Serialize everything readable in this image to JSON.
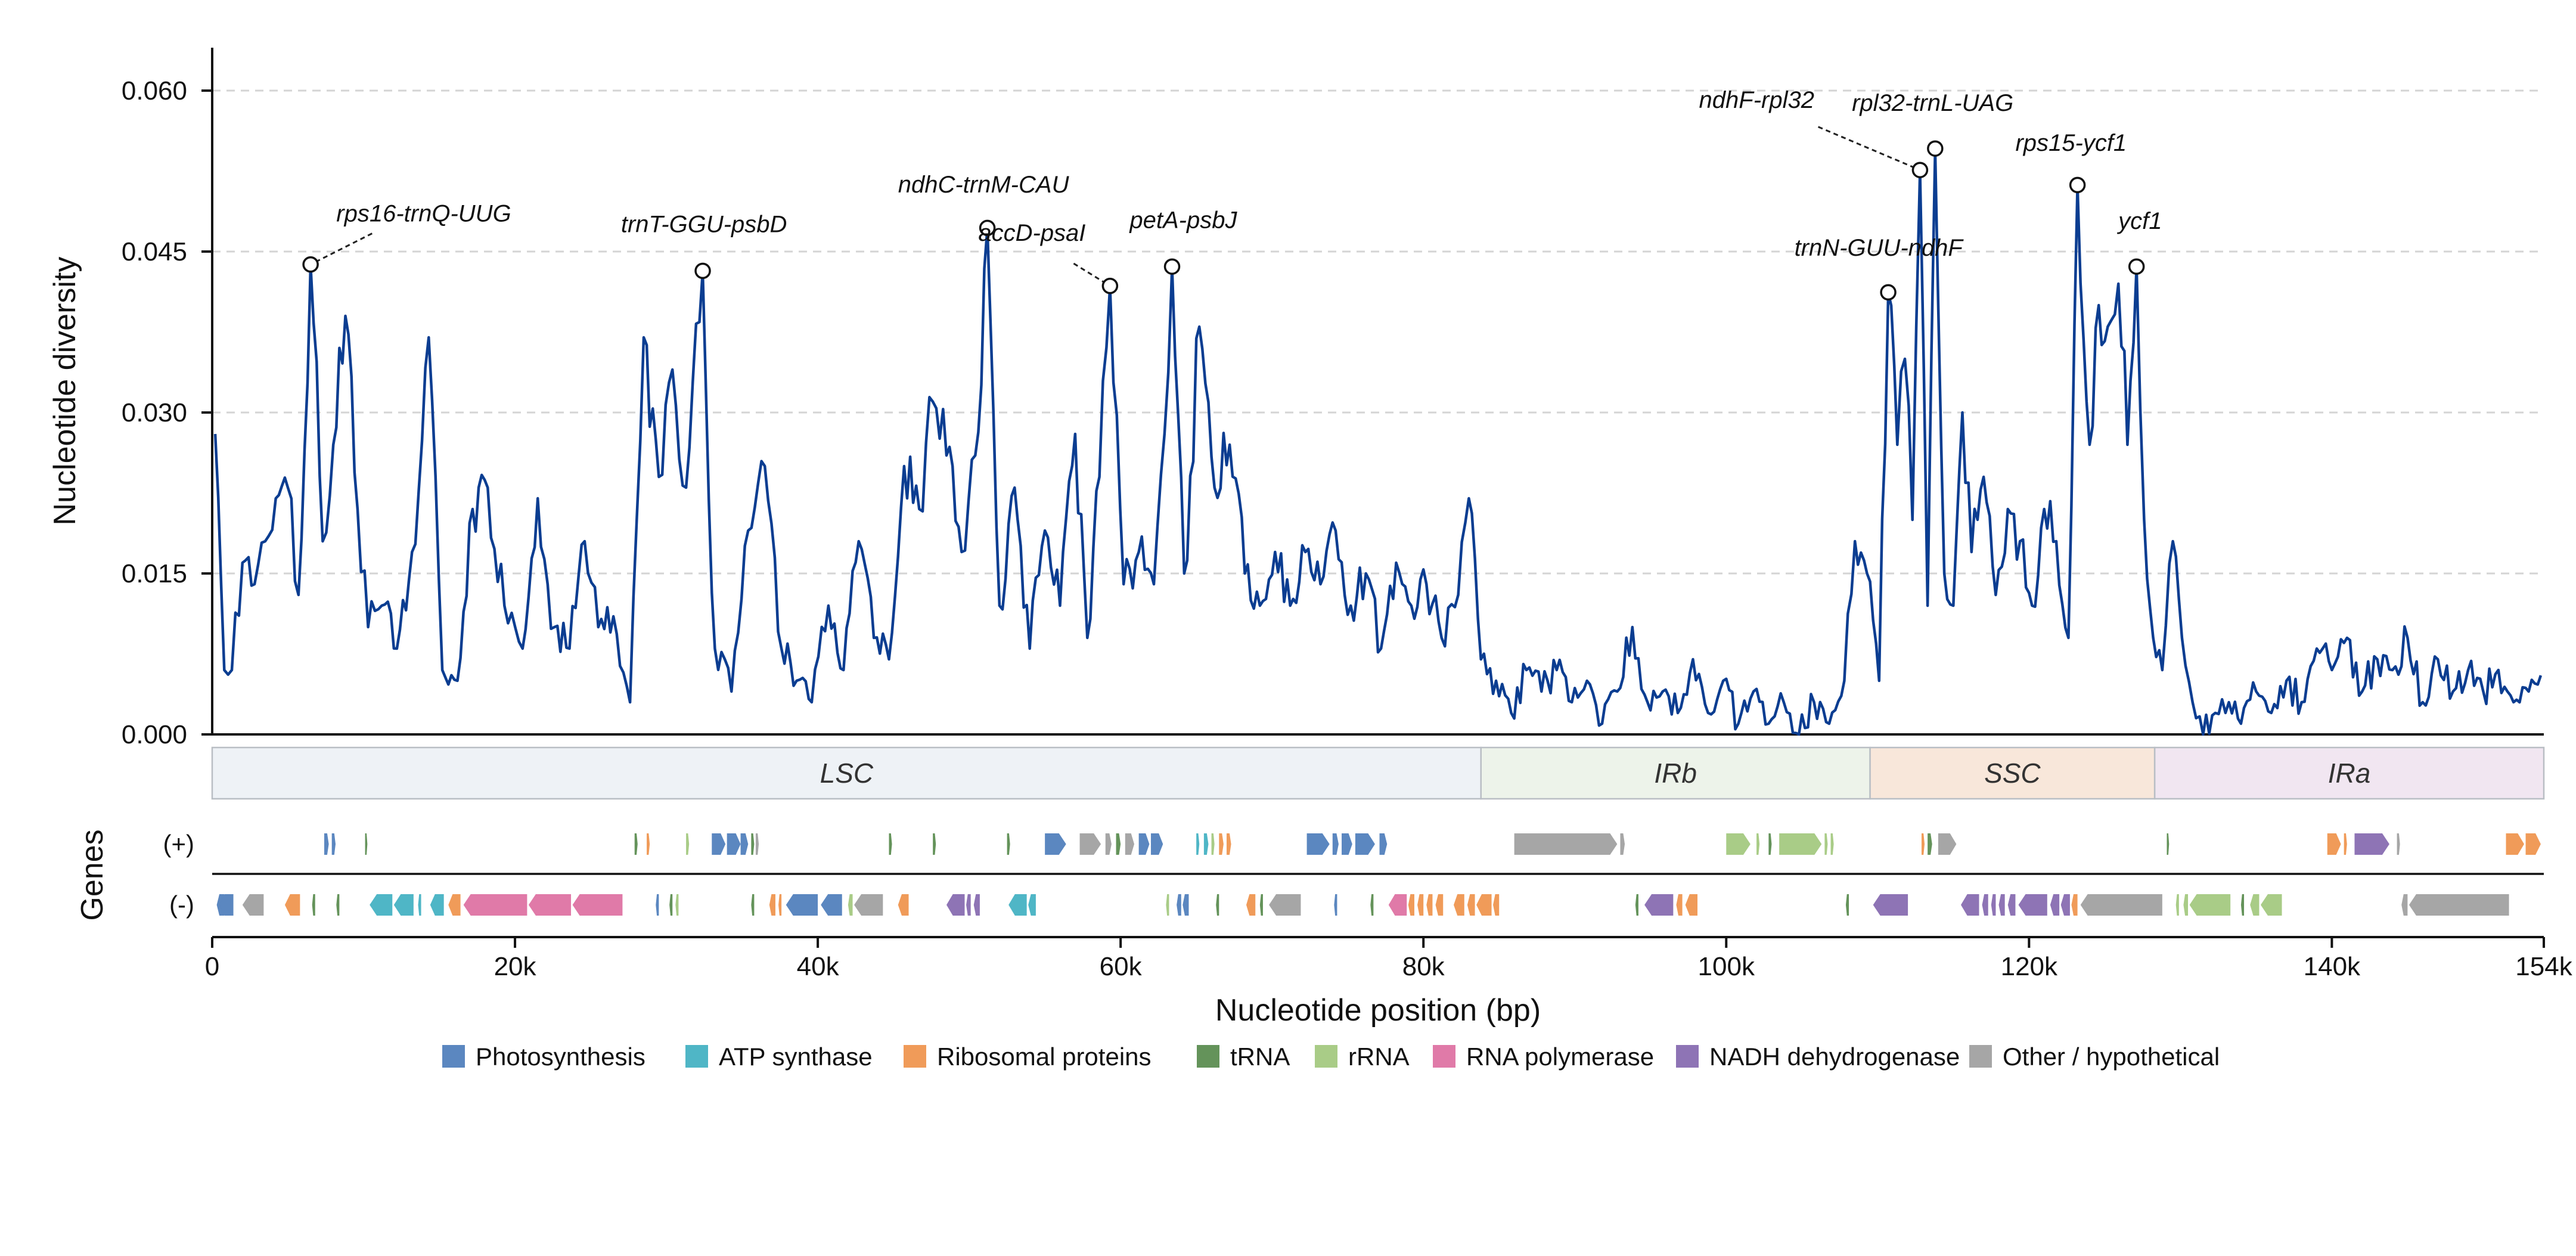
{
  "chart_data": {
    "type": "line",
    "ylabel": "Nucleotide diversity",
    "xlabel": "Nucleotide position (bp)",
    "xlim": [
      0,
      154000
    ],
    "ylim": [
      0,
      0.064
    ],
    "yticks": [
      "0.000",
      "0.015",
      "0.030",
      "0.045",
      "0.060"
    ],
    "ytick_values": [
      0,
      0.015,
      0.03,
      0.045,
      0.06
    ],
    "xticks": [
      "0",
      "20k",
      "40k",
      "60k",
      "80k",
      "100k",
      "120k",
      "140k",
      "154k"
    ],
    "xtick_values": [
      0,
      20000,
      40000,
      60000,
      80000,
      100000,
      120000,
      140000,
      154000
    ],
    "grid": "horizontal-dashed",
    "line_color": "#0b3d91",
    "keypoints": [
      [
        200,
        0.028
      ],
      [
        800,
        0.006
      ],
      [
        1300,
        0.006
      ],
      [
        2000,
        0.016
      ],
      [
        2800,
        0.014
      ],
      [
        3500,
        0.018
      ],
      [
        4200,
        0.022
      ],
      [
        5000,
        0.023
      ],
      [
        5700,
        0.013
      ],
      [
        6500,
        0.0438
      ],
      [
        7300,
        0.018
      ],
      [
        8000,
        0.027
      ],
      [
        8800,
        0.039
      ],
      [
        9600,
        0.021
      ],
      [
        10300,
        0.01
      ],
      [
        11200,
        0.012
      ],
      [
        12200,
        0.008
      ],
      [
        13200,
        0.017
      ],
      [
        14300,
        0.037
      ],
      [
        15200,
        0.006
      ],
      [
        16200,
        0.005
      ],
      [
        17200,
        0.021
      ],
      [
        18200,
        0.023
      ],
      [
        19300,
        0.012
      ],
      [
        20500,
        0.008
      ],
      [
        21500,
        0.022
      ],
      [
        22600,
        0.01
      ],
      [
        23600,
        0.008
      ],
      [
        24600,
        0.018
      ],
      [
        25500,
        0.01
      ],
      [
        26500,
        0.011
      ],
      [
        27600,
        0.003
      ],
      [
        28500,
        0.037
      ],
      [
        29500,
        0.024
      ],
      [
        30400,
        0.034
      ],
      [
        31300,
        0.023
      ],
      [
        32400,
        0.0432
      ],
      [
        33200,
        0.008
      ],
      [
        34300,
        0.004
      ],
      [
        35400,
        0.019
      ],
      [
        36500,
        0.025
      ],
      [
        37600,
        0.008
      ],
      [
        38600,
        0.005
      ],
      [
        39600,
        0.003
      ],
      [
        40700,
        0.012
      ],
      [
        41700,
        0.006
      ],
      [
        42700,
        0.018
      ],
      [
        43700,
        0.009
      ],
      [
        44700,
        0.007
      ],
      [
        45700,
        0.025
      ],
      [
        46700,
        0.021
      ],
      [
        47600,
        0.031
      ],
      [
        48500,
        0.026
      ],
      [
        49500,
        0.017
      ],
      [
        50400,
        0.026
      ],
      [
        51200,
        0.0472
      ],
      [
        52000,
        0.012
      ],
      [
        53000,
        0.023
      ],
      [
        54000,
        0.008
      ],
      [
        55000,
        0.019
      ],
      [
        56000,
        0.012
      ],
      [
        57000,
        0.028
      ],
      [
        57800,
        0.009
      ],
      [
        58600,
        0.024
      ],
      [
        59300,
        0.0418
      ],
      [
        60200,
        0.014
      ],
      [
        61200,
        0.017
      ],
      [
        62200,
        0.014
      ],
      [
        62900,
        0.028
      ],
      [
        63400,
        0.0436
      ],
      [
        64200,
        0.015
      ],
      [
        65200,
        0.038
      ],
      [
        66200,
        0.023
      ],
      [
        67200,
        0.027
      ],
      [
        68200,
        0.015
      ],
      [
        69200,
        0.012
      ],
      [
        70200,
        0.017
      ],
      [
        71200,
        0.012
      ],
      [
        72200,
        0.017
      ],
      [
        73200,
        0.014
      ],
      [
        74200,
        0.019
      ],
      [
        75200,
        0.012
      ],
      [
        76200,
        0.015
      ],
      [
        77200,
        0.008
      ],
      [
        78200,
        0.016
      ],
      [
        79200,
        0.012
      ],
      [
        80200,
        0.014
      ],
      [
        81200,
        0.009
      ],
      [
        82300,
        0.013
      ],
      [
        83000,
        0.022
      ],
      [
        83800,
        0.007
      ],
      [
        84800,
        0.005
      ],
      [
        85800,
        0.002
      ],
      [
        86800,
        0.006
      ],
      [
        87800,
        0.004
      ],
      [
        88800,
        0.006
      ],
      [
        89800,
        0.003
      ],
      [
        90800,
        0.005
      ],
      [
        91800,
        0.001
      ],
      [
        92800,
        0.004
      ],
      [
        93800,
        0.01
      ],
      [
        94800,
        0.003
      ],
      [
        95800,
        0.004
      ],
      [
        96800,
        0.002
      ],
      [
        97800,
        0.007
      ],
      [
        98800,
        0.002
      ],
      [
        99800,
        0.005
      ],
      [
        100800,
        0.001
      ],
      [
        101800,
        0.004
      ],
      [
        102800,
        0.001
      ],
      [
        103800,
        0.003
      ],
      [
        104800,
        0.0
      ],
      [
        105800,
        0.003
      ],
      [
        106800,
        0.001
      ],
      [
        107800,
        0.005
      ],
      [
        108500,
        0.018
      ],
      [
        109300,
        0.015
      ],
      [
        110100,
        0.005
      ],
      [
        110700,
        0.0412
      ],
      [
        111300,
        0.027
      ],
      [
        111800,
        0.035
      ],
      [
        112300,
        0.02
      ],
      [
        112800,
        0.0526
      ],
      [
        113300,
        0.012
      ],
      [
        113800,
        0.0546
      ],
      [
        114400,
        0.015
      ],
      [
        115000,
        0.012
      ],
      [
        115600,
        0.03
      ],
      [
        116200,
        0.017
      ],
      [
        117000,
        0.024
      ],
      [
        117800,
        0.013
      ],
      [
        118600,
        0.021
      ],
      [
        119400,
        0.018
      ],
      [
        120200,
        0.012
      ],
      [
        121000,
        0.021
      ],
      [
        121800,
        0.018
      ],
      [
        122600,
        0.009
      ],
      [
        123200,
        0.0512
      ],
      [
        124000,
        0.027
      ],
      [
        124600,
        0.04
      ],
      [
        125200,
        0.038
      ],
      [
        125900,
        0.042
      ],
      [
        126500,
        0.027
      ],
      [
        127100,
        0.0436
      ],
      [
        127600,
        0.02
      ],
      [
        128200,
        0.009
      ],
      [
        128800,
        0.006
      ],
      [
        129500,
        0.018
      ],
      [
        130100,
        0.009
      ],
      [
        130800,
        0.003
      ],
      [
        131500,
        0.0
      ],
      [
        132300,
        0.002
      ],
      [
        133200,
        0.003
      ],
      [
        134000,
        0.001
      ],
      [
        135000,
        0.004
      ],
      [
        136000,
        0.002
      ],
      [
        137000,
        0.005
      ],
      [
        138000,
        0.003
      ],
      [
        139000,
        0.008
      ],
      [
        140000,
        0.006
      ],
      [
        141000,
        0.009
      ],
      [
        142000,
        0.004
      ],
      [
        143000,
        0.007
      ],
      [
        144000,
        0.006
      ],
      [
        145000,
        0.009
      ],
      [
        146000,
        0.003
      ],
      [
        147000,
        0.007
      ],
      [
        148000,
        0.004
      ],
      [
        149000,
        0.006
      ],
      [
        150000,
        0.004
      ],
      [
        151000,
        0.006
      ],
      [
        152000,
        0.003
      ],
      [
        153000,
        0.004
      ],
      [
        153800,
        0.0055
      ]
    ],
    "peaks": [
      {
        "label": "rps16-trnQ-UUG",
        "x": 6500,
        "y": 0.0438,
        "label_pos": [
          8200,
          0.0478
        ]
      },
      {
        "label": "trnT-GGU-psbD",
        "x": 32400,
        "y": 0.0432,
        "label_pos": [
          27000,
          0.0468
        ]
      },
      {
        "label": "ndhC-trnM-CAU",
        "x": 51200,
        "y": 0.0472,
        "label_pos": [
          45300,
          0.0505
        ]
      },
      {
        "label": "accD-psaI",
        "x": 59300,
        "y": 0.0418,
        "label_pos": [
          50600,
          0.046
        ]
      },
      {
        "label": "petA-psbJ",
        "x": 63400,
        "y": 0.0436,
        "label_pos": [
          60600,
          0.0472
        ]
      },
      {
        "label": "trnN-GUU-ndhF",
        "x": 110700,
        "y": 0.0412,
        "label_pos": [
          104500,
          0.0446
        ]
      },
      {
        "label": "ndhF-rpl32",
        "x": 112800,
        "y": 0.0526,
        "label_pos": [
          98200,
          0.0584
        ]
      },
      {
        "label": "rpl32-trnL-UAG",
        "x": 113800,
        "y": 0.0546,
        "label_pos": [
          108300,
          0.0581
        ]
      },
      {
        "label": "rps15-ycf1",
        "x": 123200,
        "y": 0.0512,
        "label_pos": [
          119100,
          0.0544
        ]
      },
      {
        "label": "ycf1",
        "x": 127100,
        "y": 0.0436,
        "label_pos": [
          125900,
          0.0471
        ]
      }
    ],
    "regions": [
      {
        "label": "LSC",
        "start": 0,
        "end": 83800,
        "color": "#eef2f6"
      },
      {
        "label": "IRb",
        "start": 83800,
        "end": 109500,
        "color": "#edf3ea"
      },
      {
        "label": "SSC",
        "start": 109500,
        "end": 128300,
        "color": "#f8e7da"
      },
      {
        "label": "IRa",
        "start": 128300,
        "end": 154000,
        "color": "#f1e6f1"
      }
    ],
    "genes_title": "Genes",
    "strand_labels": {
      "plus": "(+)",
      "minus": "(-)"
    },
    "categories": [
      {
        "name": "Photosynthesis",
        "color": "#5b87c0"
      },
      {
        "name": "ATP synthase",
        "color": "#4fb6c6"
      },
      {
        "name": "Ribosomal proteins",
        "color": "#f09b59"
      },
      {
        "name": "tRNA",
        "color": "#64935a"
      },
      {
        "name": "rRNA",
        "color": "#a9cc87"
      },
      {
        "name": "RNA polymerase",
        "color": "#e07aa8"
      },
      {
        "name": "NADH dehydrogenase",
        "color": "#8e74b5"
      },
      {
        "name": "Other / hypothetical",
        "color": "#a6a6a6"
      }
    ],
    "genes_plus": [
      [
        7400,
        7700,
        0
      ],
      [
        7900,
        8150,
        0
      ],
      [
        10100,
        10250,
        3
      ],
      [
        27900,
        28100,
        3
      ],
      [
        28700,
        28900,
        2
      ],
      [
        31300,
        31500,
        4
      ],
      [
        33000,
        33900,
        0
      ],
      [
        34000,
        34900,
        0
      ],
      [
        34900,
        35400,
        0
      ],
      [
        35600,
        35800,
        3
      ],
      [
        35900,
        36100,
        7
      ],
      [
        44700,
        44900,
        3
      ],
      [
        47600,
        47800,
        3
      ],
      [
        52500,
        52700,
        3
      ],
      [
        55000,
        56400,
        0
      ],
      [
        57300,
        58700,
        7
      ],
      [
        59000,
        59400,
        7
      ],
      [
        59700,
        60000,
        3
      ],
      [
        60300,
        60900,
        7
      ],
      [
        61200,
        61900,
        0
      ],
      [
        62000,
        62800,
        0
      ],
      [
        65000,
        65200,
        1
      ],
      [
        65500,
        65800,
        1
      ],
      [
        66000,
        66200,
        4
      ],
      [
        66500,
        66800,
        2
      ],
      [
        67000,
        67300,
        2
      ],
      [
        72300,
        73800,
        0
      ],
      [
        74000,
        74400,
        0
      ],
      [
        74600,
        75300,
        0
      ],
      [
        75500,
        76800,
        0
      ],
      [
        77100,
        77600,
        0
      ],
      [
        86000,
        92800,
        7
      ],
      [
        93000,
        93300,
        7
      ],
      [
        100000,
        101600,
        4
      ],
      [
        102000,
        102200,
        4
      ],
      [
        102800,
        103000,
        3
      ],
      [
        103500,
        106300,
        4
      ],
      [
        106500,
        106700,
        4
      ],
      [
        106900,
        107100,
        4
      ],
      [
        112900,
        113100,
        2
      ],
      [
        113300,
        113600,
        3
      ],
      [
        114000,
        115200,
        7
      ],
      [
        129100,
        129250,
        3
      ],
      [
        139700,
        140600,
        2
      ],
      [
        140800,
        141000,
        2
      ],
      [
        141500,
        143800,
        6
      ],
      [
        144300,
        144500,
        7
      ],
      [
        151500,
        152700,
        2
      ],
      [
        152800,
        153800,
        2
      ]
    ],
    "genes_minus": [
      [
        300,
        800,
        0
      ],
      [
        500,
        1400,
        0
      ],
      [
        2000,
        3400,
        7
      ],
      [
        4800,
        5800,
        2
      ],
      [
        6600,
        6800,
        3
      ],
      [
        8200,
        8400,
        3
      ],
      [
        10400,
        11900,
        1
      ],
      [
        12000,
        13300,
        1
      ],
      [
        13600,
        13800,
        1
      ],
      [
        14400,
        15300,
        1
      ],
      [
        15600,
        16400,
        2
      ],
      [
        16600,
        20800,
        5
      ],
      [
        20900,
        23700,
        5
      ],
      [
        23800,
        27100,
        5
      ],
      [
        29300,
        29500,
        0
      ],
      [
        30200,
        30400,
        3
      ],
      [
        30600,
        30800,
        4
      ],
      [
        35600,
        35800,
        3
      ],
      [
        36800,
        37200,
        2
      ],
      [
        37400,
        37600,
        2
      ],
      [
        37900,
        40000,
        0
      ],
      [
        40200,
        41600,
        0
      ],
      [
        42000,
        42300,
        4
      ],
      [
        42400,
        44300,
        7
      ],
      [
        45300,
        46000,
        2
      ],
      [
        48500,
        49700,
        6
      ],
      [
        49800,
        50100,
        6
      ],
      [
        50300,
        50700,
        6
      ],
      [
        52600,
        53800,
        1
      ],
      [
        53900,
        54400,
        1
      ],
      [
        63000,
        63200,
        4
      ],
      [
        63700,
        64000,
        0
      ],
      [
        64100,
        64500,
        0
      ],
      [
        66300,
        66500,
        3
      ],
      [
        68300,
        68900,
        2
      ],
      [
        69200,
        69400,
        3
      ],
      [
        69800,
        71900,
        7
      ],
      [
        74100,
        74300,
        0
      ],
      [
        76500,
        76700,
        3
      ],
      [
        77700,
        78900,
        5
      ],
      [
        79000,
        79400,
        2
      ],
      [
        79600,
        80000,
        2
      ],
      [
        80200,
        80600,
        2
      ],
      [
        80800,
        81300,
        2
      ],
      [
        82000,
        82700,
        2
      ],
      [
        82900,
        83400,
        2
      ],
      [
        83500,
        84500,
        2
      ],
      [
        84600,
        85000,
        2
      ],
      [
        94000,
        94200,
        3
      ],
      [
        94600,
        96500,
        6
      ],
      [
        96700,
        97100,
        2
      ],
      [
        97300,
        98100,
        2
      ],
      [
        107900,
        108100,
        3
      ],
      [
        109700,
        112000,
        6
      ],
      [
        115500,
        116700,
        6
      ],
      [
        116900,
        117300,
        6
      ],
      [
        117500,
        117800,
        6
      ],
      [
        118000,
        118400,
        6
      ],
      [
        118600,
        119100,
        6
      ],
      [
        119300,
        121200,
        6
      ],
      [
        121400,
        122000,
        6
      ],
      [
        122100,
        122700,
        6
      ],
      [
        122800,
        123200,
        2
      ],
      [
        123400,
        128800,
        7
      ],
      [
        129700,
        129900,
        4
      ],
      [
        130200,
        130500,
        4
      ],
      [
        130600,
        133300,
        4
      ],
      [
        134000,
        134200,
        3
      ],
      [
        134600,
        135200,
        4
      ],
      [
        135300,
        136700,
        4
      ],
      [
        144600,
        145000,
        7
      ],
      [
        145100,
        151700,
        7
      ]
    ]
  }
}
